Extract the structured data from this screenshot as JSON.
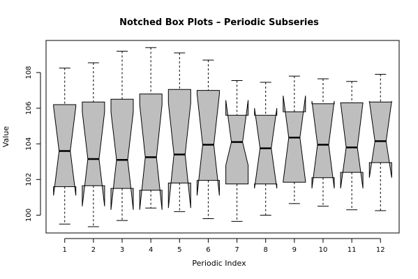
{
  "chart_data": {
    "type": "box",
    "notched": true,
    "title": "Notched Box Plots – Periodic Subseries",
    "xlabel": "Periodic Index",
    "ylabel": "Value",
    "categories": [
      "1",
      "2",
      "3",
      "4",
      "5",
      "6",
      "7",
      "8",
      "9",
      "10",
      "11",
      "12"
    ],
    "ylim": [
      99.0,
      109.8
    ],
    "yticks": [
      100,
      102,
      104,
      106,
      108
    ],
    "box_fill": "#bebebe",
    "boxes": [
      {
        "category": "1",
        "whisker_low": 99.5,
        "q1": 101.6,
        "median": 103.6,
        "q3": 106.2,
        "whisker_high": 108.25,
        "notch_low": 101.1,
        "notch_high": 106.1
      },
      {
        "category": "2",
        "whisker_low": 99.35,
        "q1": 101.65,
        "median": 103.15,
        "q3": 106.35,
        "whisker_high": 108.55,
        "notch_low": 100.5,
        "notch_high": 105.8
      },
      {
        "category": "3",
        "whisker_low": 99.7,
        "q1": 101.5,
        "median": 103.1,
        "q3": 106.5,
        "whisker_high": 109.2,
        "notch_low": 100.3,
        "notch_high": 105.8
      },
      {
        "category": "4",
        "whisker_low": 100.4,
        "q1": 101.4,
        "median": 103.25,
        "q3": 106.8,
        "whisker_high": 109.4,
        "notch_low": 100.3,
        "notch_high": 106.2
      },
      {
        "category": "5",
        "whisker_low": 100.2,
        "q1": 101.8,
        "median": 103.4,
        "q3": 107.05,
        "whisker_high": 109.1,
        "notch_low": 100.4,
        "notch_high": 106.3
      },
      {
        "category": "6",
        "whisker_low": 99.8,
        "q1": 101.95,
        "median": 103.95,
        "q3": 107.0,
        "whisker_high": 108.7,
        "notch_low": 101.1,
        "notch_high": 106.8
      },
      {
        "category": "7",
        "whisker_low": 99.65,
        "q1": 101.75,
        "median": 104.1,
        "q3": 105.6,
        "whisker_high": 107.55,
        "notch_low": 102.8,
        "notch_high": 106.45
      },
      {
        "category": "8",
        "whisker_low": 100.0,
        "q1": 101.75,
        "median": 103.75,
        "q3": 105.6,
        "whisker_high": 107.45,
        "notch_low": 101.5,
        "notch_high": 106.0
      },
      {
        "category": "9",
        "whisker_low": 100.65,
        "q1": 101.85,
        "median": 104.35,
        "q3": 105.8,
        "whisker_high": 107.8,
        "notch_low": 101.9,
        "notch_high": 106.7
      },
      {
        "category": "10",
        "whisker_low": 100.5,
        "q1": 102.1,
        "median": 103.95,
        "q3": 106.25,
        "whisker_high": 107.65,
        "notch_low": 101.5,
        "notch_high": 106.4
      },
      {
        "category": "11",
        "whisker_low": 100.3,
        "q1": 102.4,
        "median": 103.8,
        "q3": 106.3,
        "whisker_high": 107.5,
        "notch_low": 101.5,
        "notch_high": 106.3
      },
      {
        "category": "12",
        "whisker_low": 100.25,
        "q1": 102.95,
        "median": 104.15,
        "q3": 106.35,
        "whisker_high": 107.9,
        "notch_low": 102.1,
        "notch_high": 106.4
      }
    ]
  }
}
